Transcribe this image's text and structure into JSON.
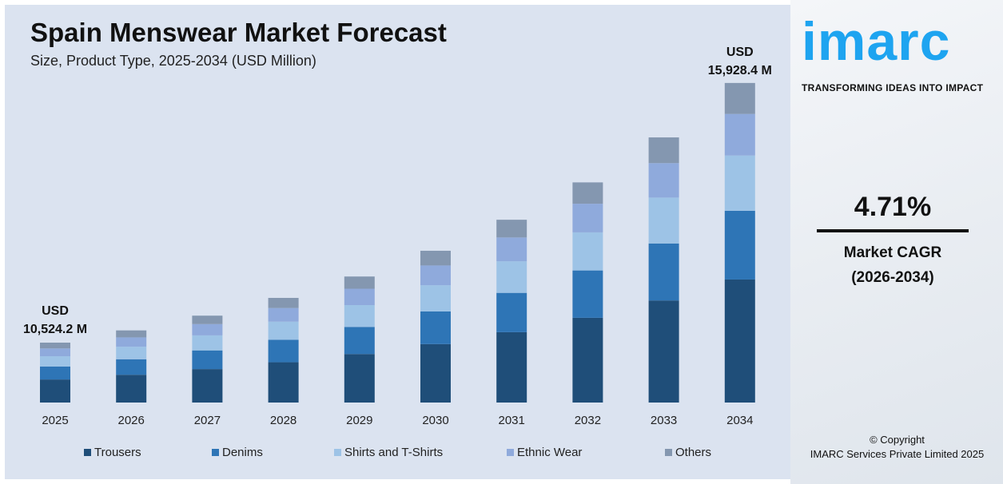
{
  "chart_data": {
    "type": "bar",
    "stacked": true,
    "title": "Spain Menswear Market Forecast",
    "subtitle": "Size, Product Type, 2025-2034 (USD Million)",
    "categories": [
      "2025",
      "2026",
      "2027",
      "2028",
      "2029",
      "2030",
      "2031",
      "2032",
      "2033",
      "2034"
    ],
    "totals": [
      10524.2,
      11019.9,
      11538.9,
      12082.4,
      12651.5,
      13247.4,
      13871.3,
      14524.7,
      15208.8,
      15928.4
    ],
    "series": [
      {
        "name": "Trousers",
        "share": 0.385,
        "color": "#1f4e79"
      },
      {
        "name": "Denims",
        "share": 0.215,
        "color": "#2e75b6"
      },
      {
        "name": "Shirts and T-Shirts",
        "share": 0.173,
        "color": "#9dc3e6"
      },
      {
        "name": "Ethnic Wear",
        "share": 0.13,
        "color": "#8faadc"
      },
      {
        "name": "Others",
        "share": 0.097,
        "color": "#8497b0"
      }
    ],
    "annotations": {
      "first": [
        "USD",
        "10,524.2 M"
      ],
      "last": [
        "USD",
        "15,928.4 M"
      ]
    },
    "grid": false,
    "legend": "bottom"
  },
  "brand": {
    "logo": "imarc",
    "tagline": "TRANSFORMING IDEAS INTO IMPACT"
  },
  "cagr": {
    "value": "4.71%",
    "label": "Market CAGR",
    "period": "(2026-2034)"
  },
  "copyright": {
    "line1": "© Copyright",
    "line2": "IMARC Services Private Limited 2025"
  }
}
